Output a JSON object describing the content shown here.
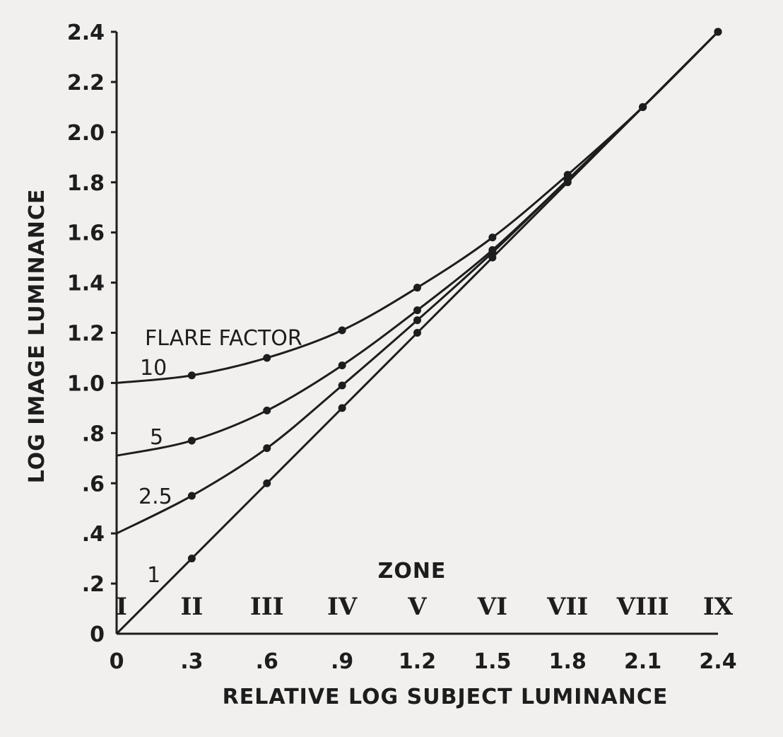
{
  "chart_data": {
    "type": "line",
    "xlabel": "RELATIVE LOG SUBJECT LUMINANCE",
    "ylabel": "LOG IMAGE LUMINANCE",
    "xlim": [
      0,
      2.4
    ],
    "ylim": [
      0,
      2.4
    ],
    "x_ticks": [
      "0",
      ".3",
      ".6",
      ".9",
      "1.2",
      "1.5",
      "1.8",
      "2.1",
      "2.4"
    ],
    "y_ticks": [
      "0",
      ".2",
      ".4",
      ".6",
      ".8",
      "1.0",
      "1.2",
      "1.4",
      "1.6",
      "1.8",
      "2.0",
      "2.2",
      "2.4"
    ],
    "grid": false,
    "legend_title": "FLARE FACTOR",
    "x": [
      0,
      0.3,
      0.6,
      0.9,
      1.2,
      1.5,
      1.8,
      2.1,
      2.4
    ],
    "series": [
      {
        "name": "1",
        "values": [
          0.0,
          0.3,
          0.6,
          0.9,
          1.2,
          1.5,
          1.8,
          2.1,
          2.4
        ]
      },
      {
        "name": "2.5",
        "values": [
          0.4,
          0.55,
          0.74,
          0.99,
          1.25,
          1.52,
          1.81,
          2.1,
          2.4
        ]
      },
      {
        "name": "5",
        "values": [
          0.71,
          0.77,
          0.89,
          1.07,
          1.29,
          1.53,
          1.81,
          2.1,
          2.4
        ]
      },
      {
        "name": "10",
        "values": [
          1.0,
          1.03,
          1.1,
          1.21,
          1.38,
          1.58,
          1.83,
          2.1,
          2.4
        ]
      }
    ],
    "zones": {
      "title": "ZONE",
      "labels": [
        "I",
        "II",
        "III",
        "IV",
        "V",
        "VI",
        "VII",
        "VIII",
        "IX"
      ]
    }
  }
}
